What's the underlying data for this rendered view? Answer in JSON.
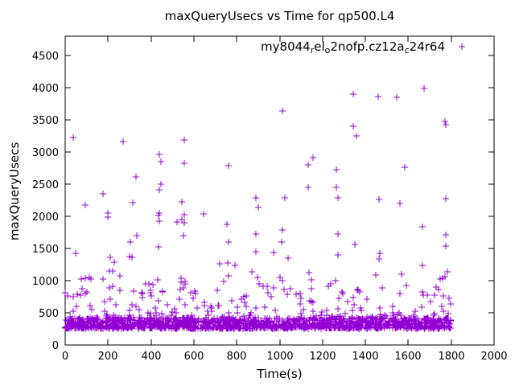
{
  "title": "maxQueryUsecs vs Time for qp500.L4",
  "legend": {
    "series_label_raw": "my8044_rel_o2nofp.cz12a_c24r64",
    "segments": [
      {
        "t": "my8044",
        "sub": false
      },
      {
        "t": "r",
        "sub": true
      },
      {
        "t": "el",
        "sub": false
      },
      {
        "t": "o",
        "sub": true
      },
      {
        "t": "2nofp.cz12a",
        "sub": false
      },
      {
        "t": "c",
        "sub": true
      },
      {
        "t": "24r64",
        "sub": false
      }
    ],
    "marker_glyph": "plus"
  },
  "colors": {
    "marker": "#9400D3",
    "axis": "#000000",
    "background": "#ffffff"
  },
  "chart_data": {
    "type": "scatter",
    "title": "maxQueryUsecs vs Time for qp500.L4",
    "xlabel": "Time(s)",
    "ylabel": "maxQueryUsecs",
    "xlim": [
      0,
      2000
    ],
    "ylim": [
      0,
      4800
    ],
    "x_ticks": [
      0,
      200,
      400,
      600,
      800,
      1000,
      1200,
      1400,
      1600,
      1800,
      2000
    ],
    "y_ticks": [
      0,
      500,
      1000,
      1500,
      2000,
      2500,
      3000,
      3500,
      4000,
      4500
    ],
    "grid": false,
    "legend_position": "top-right-inside",
    "series_name": "my8044_rel_o2nofp.cz12a_c24r64",
    "marker": "plus",
    "color": "#9400D3",
    "description": "~1800 samples, one per second for 0-1800s; dense band of maxQueryUsecs between ~255-420 usec, scattered layer 420-900, plus outliers listed below",
    "outliers": [
      [
        0,
        815
      ],
      [
        12,
        765
      ],
      [
        38,
        750
      ],
      [
        38,
        3220
      ],
      [
        50,
        1420
      ],
      [
        72,
        770
      ],
      [
        75,
        1030
      ],
      [
        80,
        875
      ],
      [
        95,
        805
      ],
      [
        95,
        1040
      ],
      [
        95,
        2175
      ],
      [
        113,
        1055
      ],
      [
        120,
        1030
      ],
      [
        175,
        1030
      ],
      [
        175,
        2355
      ],
      [
        200,
        1990
      ],
      [
        200,
        2050
      ],
      [
        205,
        890
      ],
      [
        205,
        1145
      ],
      [
        210,
        1365
      ],
      [
        220,
        915
      ],
      [
        220,
        1145
      ],
      [
        230,
        1285
      ],
      [
        255,
        1070
      ],
      [
        270,
        3160
      ],
      [
        300,
        1370
      ],
      [
        305,
        1595
      ],
      [
        310,
        1365
      ],
      [
        315,
        2210
      ],
      [
        320,
        840
      ],
      [
        330,
        2610
      ],
      [
        335,
        1700
      ],
      [
        375,
        945
      ],
      [
        390,
        950
      ],
      [
        410,
        933
      ],
      [
        430,
        1015
      ],
      [
        435,
        1530
      ],
      [
        435,
        2010
      ],
      [
        440,
        1925
      ],
      [
        440,
        2055
      ],
      [
        440,
        2415
      ],
      [
        440,
        2965
      ],
      [
        445,
        2505
      ],
      [
        445,
        2855
      ],
      [
        520,
        1915
      ],
      [
        540,
        980
      ],
      [
        540,
        1040
      ],
      [
        545,
        1955
      ],
      [
        545,
        2230
      ],
      [
        550,
        890
      ],
      [
        550,
        1695
      ],
      [
        555,
        1905
      ],
      [
        555,
        2030
      ],
      [
        555,
        2820
      ],
      [
        555,
        3190
      ],
      [
        560,
        950
      ],
      [
        560,
        990
      ],
      [
        645,
        2040
      ],
      [
        722,
        1266
      ],
      [
        738,
        990
      ],
      [
        753,
        1875
      ],
      [
        759,
        1279
      ],
      [
        760,
        2785
      ],
      [
        763,
        1070
      ],
      [
        763,
        1595
      ],
      [
        792,
        1241
      ],
      [
        870,
        1133
      ],
      [
        888,
        1730
      ],
      [
        890,
        1450
      ],
      [
        890,
        2285
      ],
      [
        895,
        1050
      ],
      [
        900,
        2140
      ],
      [
        905,
        945
      ],
      [
        923,
        916
      ],
      [
        940,
        908
      ],
      [
        970,
        888
      ],
      [
        970,
        1438
      ],
      [
        1000,
        1054
      ],
      [
        1010,
        1595
      ],
      [
        1015,
        1000
      ],
      [
        1015,
        1790
      ],
      [
        1015,
        3640
      ],
      [
        1025,
        2285
      ],
      [
        1038,
        1345
      ],
      [
        1135,
        2445
      ],
      [
        1135,
        2795
      ],
      [
        1138,
        1125
      ],
      [
        1147,
        1013
      ],
      [
        1155,
        2910
      ],
      [
        1226,
        908
      ],
      [
        1240,
        945
      ],
      [
        1260,
        1000
      ],
      [
        1265,
        2445
      ],
      [
        1265,
        2725
      ],
      [
        1272,
        1404
      ],
      [
        1273,
        1720
      ],
      [
        1273,
        2285
      ],
      [
        1290,
        830
      ],
      [
        1295,
        800
      ],
      [
        1345,
        3400
      ],
      [
        1345,
        3905
      ],
      [
        1350,
        1563
      ],
      [
        1360,
        3255
      ],
      [
        1367,
        854
      ],
      [
        1373,
        820
      ],
      [
        1449,
        1091
      ],
      [
        1460,
        3860
      ],
      [
        1465,
        1341
      ],
      [
        1465,
        2263
      ],
      [
        1467,
        1429
      ],
      [
        1480,
        888
      ],
      [
        1545,
        3850
      ],
      [
        1560,
        2195
      ],
      [
        1570,
        1104
      ],
      [
        1585,
        2765
      ],
      [
        1592,
        925
      ],
      [
        1665,
        820
      ],
      [
        1667,
        1238
      ],
      [
        1667,
        1841
      ],
      [
        1671,
        779
      ],
      [
        1675,
        3990
      ],
      [
        1721,
        779
      ],
      [
        1730,
        895
      ],
      [
        1750,
        1030
      ],
      [
        1760,
        1040
      ],
      [
        1765,
        758
      ],
      [
        1770,
        1063
      ],
      [
        1770,
        3480
      ],
      [
        1775,
        1540
      ],
      [
        1775,
        1716
      ],
      [
        1775,
        2270
      ],
      [
        1775,
        3430
      ],
      [
        1784,
        1133
      ]
    ],
    "band": {
      "count": 1450,
      "x_range": [
        0,
        1800
      ],
      "v_min": 255,
      "v_span": 165,
      "exponent": 1.5,
      "seed": 1234567
    },
    "mid_layer": {
      "count": 180,
      "x_range": [
        0,
        1800
      ],
      "v_min": 420,
      "v_span": 470,
      "exponent": 2.2,
      "seed": 424242
    }
  }
}
